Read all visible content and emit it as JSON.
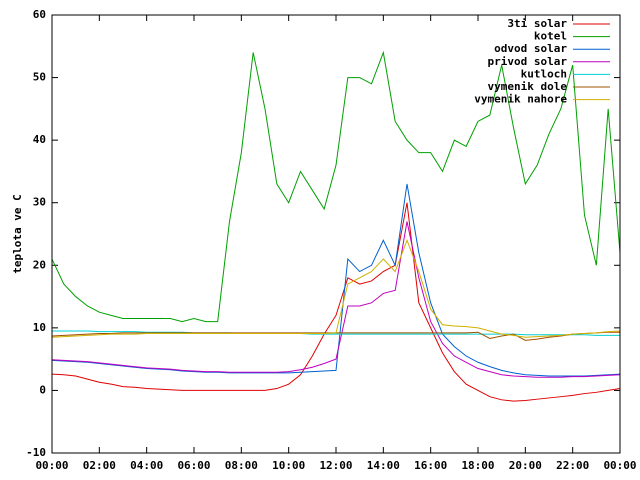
{
  "chart_data": {
    "type": "line",
    "y_label": "teplota ve C",
    "x": [
      0,
      0.5,
      1,
      1.5,
      2,
      2.5,
      3,
      3.5,
      4,
      4.5,
      5,
      5.5,
      6,
      6.5,
      7,
      7.5,
      8,
      8.5,
      9,
      9.5,
      10,
      10.5,
      11,
      11.5,
      12,
      12.5,
      13,
      13.5,
      14,
      14.5,
      15,
      15.5,
      16,
      16.5,
      17,
      17.5,
      18,
      18.5,
      19,
      19.5,
      20,
      20.5,
      21,
      21.5,
      22,
      22.5,
      23,
      23.5,
      24
    ],
    "xlim": [
      0,
      24
    ],
    "xticks": [
      {
        "value": 0,
        "label": "00:00"
      },
      {
        "value": 2,
        "label": "02:00"
      },
      {
        "value": 4,
        "label": "04:00"
      },
      {
        "value": 6,
        "label": "06:00"
      },
      {
        "value": 8,
        "label": "08:00"
      },
      {
        "value": 10,
        "label": "10:00"
      },
      {
        "value": 12,
        "label": "12:00"
      },
      {
        "value": 14,
        "label": "14:00"
      },
      {
        "value": 16,
        "label": "16:00"
      },
      {
        "value": 18,
        "label": "18:00"
      },
      {
        "value": 20,
        "label": "20:00"
      },
      {
        "value": 22,
        "label": "22:00"
      },
      {
        "value": 24,
        "label": "00:00"
      }
    ],
    "ylim": [
      -10,
      60
    ],
    "yticks": [
      -10,
      0,
      10,
      20,
      30,
      40,
      50,
      60
    ],
    "grid": false,
    "legend": "top-right",
    "series": [
      {
        "name": "3ti solar",
        "color": "#e00000",
        "values": [
          2.6,
          2.5,
          2.3,
          1.8,
          1.3,
          1,
          0.6,
          0.5,
          0.3,
          0.2,
          0.1,
          0,
          0,
          0,
          0,
          0,
          0,
          0,
          0,
          0.3,
          1,
          2.5,
          5.5,
          9,
          12,
          18,
          17,
          17.5,
          19,
          20,
          30,
          14,
          10,
          6,
          3,
          1,
          0,
          -1,
          -1.5,
          -1.7,
          -1.6,
          -1.4,
          -1.2,
          -1,
          -0.8,
          -0.5,
          -0.3,
          0,
          0.3
        ]
      },
      {
        "name": "kotel",
        "color": "#00a000",
        "values": [
          21,
          17,
          15,
          13.5,
          12.5,
          12,
          11.5,
          11.5,
          11.5,
          11.5,
          11.5,
          11,
          11.5,
          11,
          11,
          27,
          38,
          54,
          45,
          33,
          30,
          35,
          32,
          29,
          36,
          50,
          50,
          49,
          54,
          43,
          40,
          38,
          38,
          35,
          40,
          39,
          43,
          44,
          52,
          42,
          33,
          36,
          41,
          45,
          52,
          28,
          20,
          45,
          22
        ]
      },
      {
        "name": "odvod solar",
        "color": "#0060d0",
        "values": [
          4.8,
          4.7,
          4.6,
          4.5,
          4.3,
          4.1,
          3.9,
          3.7,
          3.5,
          3.4,
          3.3,
          3.1,
          3,
          2.9,
          2.9,
          2.8,
          2.8,
          2.8,
          2.8,
          2.8,
          2.8,
          2.9,
          3,
          3.1,
          3.2,
          21,
          19,
          20,
          24,
          20,
          33,
          22,
          14,
          9,
          7,
          5.5,
          4.5,
          3.8,
          3.2,
          2.8,
          2.5,
          2.4,
          2.3,
          2.3,
          2.3,
          2.3,
          2.4,
          2.5,
          2.6
        ]
      },
      {
        "name": "privod solar",
        "color": "#c000c0",
        "values": [
          4.9,
          4.8,
          4.7,
          4.6,
          4.4,
          4.2,
          4,
          3.8,
          3.6,
          3.5,
          3.4,
          3.2,
          3.1,
          3,
          3,
          2.9,
          2.9,
          2.9,
          2.9,
          2.9,
          3,
          3.3,
          3.7,
          4.3,
          5,
          13.5,
          13.5,
          14,
          15.5,
          16,
          27,
          18,
          11,
          7.5,
          5.5,
          4.5,
          3.5,
          3,
          2.5,
          2.3,
          2.2,
          2.1,
          2.1,
          2.1,
          2.2,
          2.2,
          2.3,
          2.4,
          2.5
        ]
      },
      {
        "name": "kutloch",
        "color": "#00d0d0",
        "values": [
          9.5,
          9.5,
          9.5,
          9.5,
          9.4,
          9.4,
          9.4,
          9.4,
          9.3,
          9.3,
          9.3,
          9.3,
          9.2,
          9.2,
          9.2,
          9.2,
          9.1,
          9.1,
          9.1,
          9.1,
          9.1,
          9.1,
          9,
          9,
          9,
          9,
          9,
          9,
          9,
          9,
          9,
          9,
          9,
          9,
          9,
          9,
          9,
          9,
          9,
          9,
          8.9,
          8.9,
          8.9,
          8.9,
          8.9,
          8.9,
          8.8,
          8.8,
          8.8
        ]
      },
      {
        "name": "vymenik dole",
        "color": "#a05000",
        "values": [
          8.7,
          8.8,
          8.9,
          9,
          9.1,
          9.1,
          9.2,
          9.2,
          9.2,
          9.2,
          9.2,
          9.2,
          9.2,
          9.2,
          9.2,
          9.2,
          9.2,
          9.2,
          9.2,
          9.2,
          9.2,
          9.2,
          9.2,
          9.2,
          9.2,
          9.2,
          9.2,
          9.2,
          9.2,
          9.2,
          9.2,
          9.2,
          9.2,
          9.2,
          9.2,
          9.2,
          9.3,
          8.3,
          8.7,
          9,
          8,
          8.2,
          8.5,
          8.7,
          9,
          9.1,
          9.2,
          9.3,
          9.3
        ]
      },
      {
        "name": "vymenik nahore",
        "color": "#d0b000",
        "values": [
          8.5,
          8.6,
          8.7,
          8.8,
          8.9,
          9,
          9,
          9,
          9.1,
          9.1,
          9.1,
          9.1,
          9.1,
          9.1,
          9.1,
          9.1,
          9.1,
          9.1,
          9.1,
          9.1,
          9.1,
          9.1,
          9.1,
          9.1,
          9.2,
          17,
          18,
          19,
          21,
          19,
          24,
          19,
          13,
          10.5,
          10.3,
          10.2,
          10,
          9.5,
          9,
          8.8,
          8.5,
          8.6,
          8.7,
          8.8,
          9,
          9.1,
          9.2,
          9.4,
          9.5
        ]
      }
    ]
  }
}
